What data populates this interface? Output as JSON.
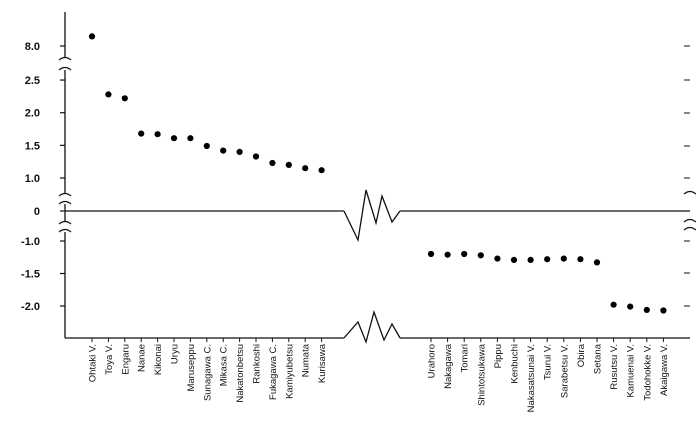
{
  "chart_data": {
    "type": "scatter",
    "title": "",
    "xlabel": "",
    "ylabel": "",
    "y_ticks": [
      "8.0",
      "2.5",
      "2.0",
      "1.5",
      "1.0",
      "0",
      "-1.0",
      "-1.5",
      "-2.0"
    ],
    "y_axis_breaks": [
      [
        2.5,
        8.0
      ],
      [
        0,
        1.0
      ],
      [
        -1.0,
        0
      ]
    ],
    "grid": false,
    "legend": "none",
    "marker_color": "#000000",
    "points": [
      {
        "label": "Ohtaki V.",
        "value": 8.4
      },
      {
        "label": "Toya V.",
        "value": 2.28
      },
      {
        "label": "Engaru",
        "value": 2.22
      },
      {
        "label": "Nanae",
        "value": 1.68
      },
      {
        "label": "Kikonai",
        "value": 1.67
      },
      {
        "label": "Uryu",
        "value": 1.61
      },
      {
        "label": "Maruseppu",
        "value": 1.61
      },
      {
        "label": "Sunagawa C.",
        "value": 1.49
      },
      {
        "label": "Mikasa C.",
        "value": 1.42
      },
      {
        "label": "Nakatonbetsu",
        "value": 1.4
      },
      {
        "label": "Rankoshi",
        "value": 1.33
      },
      {
        "label": "Fukagawa C.",
        "value": 1.23
      },
      {
        "label": "Kamiyubetsu",
        "value": 1.2
      },
      {
        "label": "Numata",
        "value": 1.15
      },
      {
        "label": "Kurisawa",
        "value": 1.12
      },
      {
        "label": "Urahoro",
        "value": -1.2
      },
      {
        "label": "Nakagawa",
        "value": -1.21
      },
      {
        "label": "Tomari",
        "value": -1.2
      },
      {
        "label": "Shintotsukawa",
        "value": -1.22
      },
      {
        "label": "Pippu",
        "value": -1.27
      },
      {
        "label": "Kenbuchi",
        "value": -1.29
      },
      {
        "label": "Nakasatsunai V.",
        "value": -1.29
      },
      {
        "label": "Tsurui V.",
        "value": -1.28
      },
      {
        "label": "Sarabetsu V.",
        "value": -1.27
      },
      {
        "label": "Obira",
        "value": -1.28
      },
      {
        "label": "Setana",
        "value": -1.33
      },
      {
        "label": "Rusutsu V.",
        "value": -1.98
      },
      {
        "label": "Kamuenai V.",
        "value": -2.01
      },
      {
        "label": "Todohokke V.",
        "value": -2.06
      },
      {
        "label": "Akaigawa V.",
        "value": -2.07
      }
    ]
  }
}
